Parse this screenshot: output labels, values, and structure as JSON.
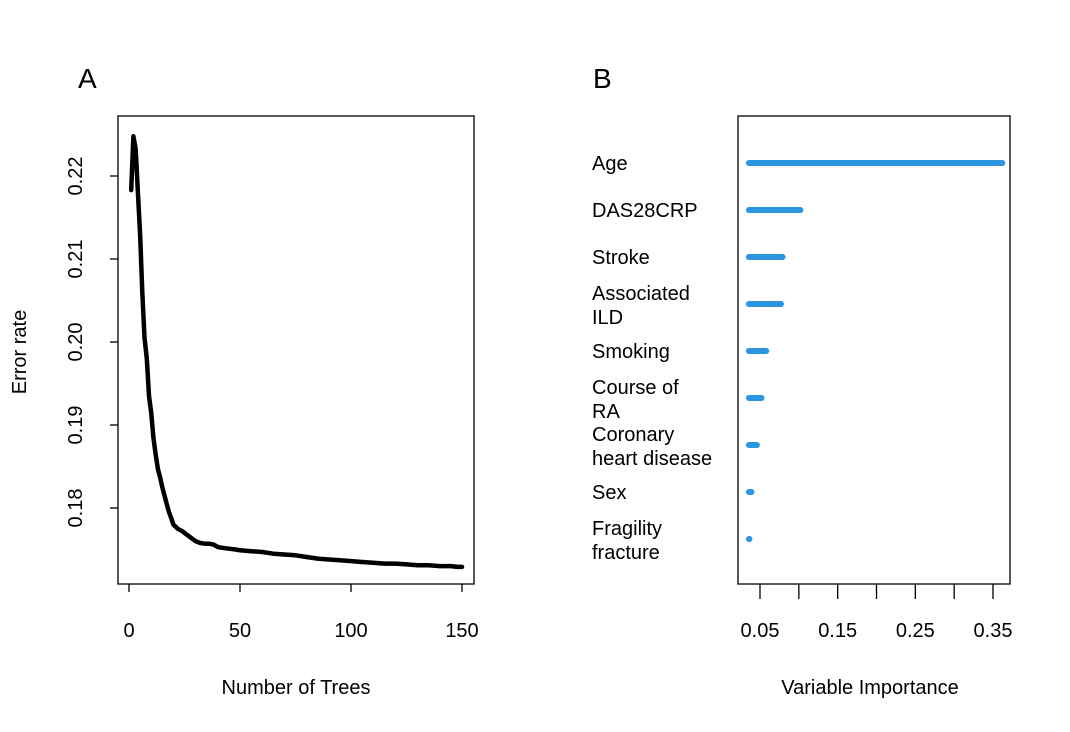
{
  "chart_data": [
    {
      "type": "line",
      "panel": "A",
      "xlabel": "Number of Trees",
      "ylabel": "Error rate",
      "xlim": [
        0,
        150
      ],
      "ylim": [
        0.1712,
        0.226
      ],
      "xticks": [
        0,
        50,
        100,
        150
      ],
      "yticks": [
        0.18,
        0.19,
        0.2,
        0.21,
        0.22
      ],
      "ytick_labels": [
        "0.18",
        "0.19",
        "0.20",
        "0.21",
        "0.22"
      ],
      "grid": false,
      "line_color": "#000000",
      "series": [
        {
          "x": [
            1,
            2,
            3,
            4,
            5,
            6,
            7,
            8,
            9,
            10,
            11,
            12,
            13,
            14,
            15,
            16,
            17,
            18,
            19,
            20,
            22,
            24,
            26,
            28,
            30,
            32,
            34,
            36,
            38,
            40,
            42,
            45,
            48,
            50,
            55,
            60,
            65,
            70,
            75,
            80,
            85,
            90,
            95,
            100,
            105,
            110,
            115,
            120,
            125,
            130,
            135,
            140,
            145,
            148,
            150
          ],
          "y": [
            0.2183,
            0.2248,
            0.2232,
            0.218,
            0.213,
            0.206,
            0.2005,
            0.198,
            0.1935,
            0.1915,
            0.1885,
            0.1865,
            0.1847,
            0.1837,
            0.1825,
            0.1815,
            0.1805,
            0.1795,
            0.1788,
            0.178,
            0.1775,
            0.1772,
            0.1768,
            0.1764,
            0.176,
            0.1758,
            0.1757,
            0.1757,
            0.1756,
            0.1753,
            0.1752,
            0.1751,
            0.175,
            0.1749,
            0.1748,
            0.1747,
            0.1745,
            0.1744,
            0.1743,
            0.1741,
            0.1739,
            0.1738,
            0.1737,
            0.1736,
            0.1735,
            0.1734,
            0.1733,
            0.1733,
            0.1732,
            0.1731,
            0.1731,
            0.173,
            0.173,
            0.1729,
            0.1729
          ]
        }
      ]
    },
    {
      "type": "bar",
      "orientation": "horizontal",
      "panel": "B",
      "xlabel": "Variable Importance",
      "xlim": [
        0.028,
        0.37
      ],
      "xticks": [
        0.05,
        0.1,
        0.15,
        0.2,
        0.25,
        0.3,
        0.35
      ],
      "xtick_labels": [
        "0.05",
        "0.15",
        "0.25",
        "0.35"
      ],
      "xtick_label_values": [
        0.05,
        0.15,
        0.25,
        0.35
      ],
      "bar_color": "#2b95e0",
      "grid": false,
      "categories": [
        [
          "Age"
        ],
        [
          "DAS28CRP"
        ],
        [
          "Stroke"
        ],
        [
          "Associated",
          "ILD"
        ],
        [
          "Smoking"
        ],
        [
          "Course of",
          "RA"
        ],
        [
          "Coronary",
          "heart disease"
        ],
        [
          "Sex"
        ],
        [
          "Fragility",
          "fracture"
        ]
      ],
      "values": [
        0.362,
        0.102,
        0.079,
        0.077,
        0.058,
        0.052,
        0.046,
        0.039,
        0.034
      ]
    }
  ],
  "panels": {
    "a_label": "A",
    "b_label": "B"
  }
}
